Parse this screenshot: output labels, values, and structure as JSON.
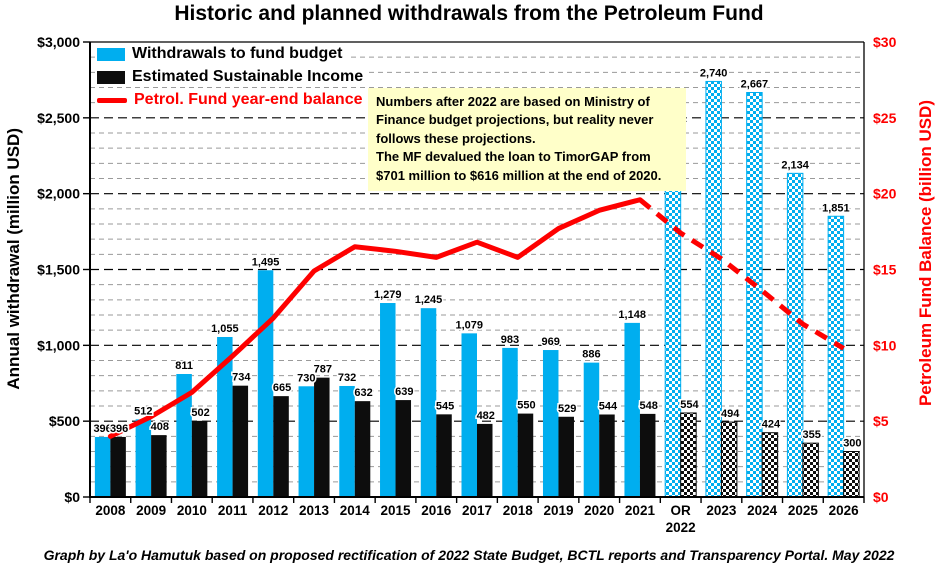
{
  "title": "Historic and planned withdrawals from the Petroleum Fund",
  "footer": "Graph by La'o Hamutuk based on proposed rectification of 2022 State Budget, BCTL reports and Transparency Portal. May 2022",
  "legend": {
    "withdrawals_label": "Withdrawals to fund budget",
    "esi_label": "Estimated Sustainable Income",
    "balance_label": "Petrol. Fund year-end balance"
  },
  "annotation": {
    "para1": "Numbers after 2022 are based on Ministry of Finance budget projections, but reality never follows these projections.",
    "para2": "The MF devalued the loan to TimorGAP from $701 million to $616 million at the end of 2020."
  },
  "axes": {
    "left_label": "Annual withdrawal (million USD)",
    "right_label": "Petroleum Fund Balance (billion USD)",
    "left_ticks": [
      "$0",
      "$500",
      "$1,000",
      "$1,500",
      "$2,000",
      "$2,500",
      "$3,000"
    ],
    "right_ticks": [
      "$0",
      "$5",
      "$10",
      "$15",
      "$20",
      "$25",
      "$30"
    ]
  },
  "colors": {
    "withdrawals_blue": "#00aeef",
    "esi_black": "#0d0d0d",
    "balance_red": "#fe0000",
    "annotation_bg": "#ffffc9"
  },
  "chart_data": {
    "type": "bar",
    "title": "Historic and planned withdrawals from the Petroleum Fund",
    "categories": [
      "2008",
      "2009",
      "2010",
      "2011",
      "2012",
      "2013",
      "2014",
      "2015",
      "2016",
      "2017",
      "2018",
      "2019",
      "2020",
      "2021",
      "OR 2022",
      "2023",
      "2024",
      "2025",
      "2026"
    ],
    "series": [
      {
        "name": "Withdrawals to fund budget",
        "type": "bar",
        "axis": "left",
        "values": [
          396,
          512,
          811,
          1055,
          1495,
          730,
          732,
          1279,
          1245,
          1079,
          983,
          969,
          886,
          1148,
          2441,
          2740,
          2667,
          2134,
          1851
        ]
      },
      {
        "name": "Estimated Sustainable Income",
        "type": "bar",
        "axis": "left",
        "values": [
          396,
          408,
          502,
          734,
          665,
          787,
          632,
          639,
          545,
          482,
          550,
          529,
          544,
          548,
          554,
          494,
          424,
          355,
          300
        ]
      },
      {
        "name": "Petrol. Fund year-end balance",
        "type": "line",
        "axis": "right",
        "values": [
          4.0,
          5.3,
          6.9,
          9.3,
          11.8,
          14.9,
          16.5,
          16.2,
          15.8,
          16.8,
          15.8,
          17.7,
          18.9,
          19.6,
          17.4,
          15.7,
          13.6,
          11.4,
          9.8
        ]
      }
    ],
    "projected_from_index": 14,
    "projected_note": "Bars from OR 2022 onward drawn with checkerboard hatch; balance line dashed from 2021 onward",
    "left_axis": {
      "label": "Annual withdrawal (million USD)",
      "min": 0,
      "max": 3000,
      "major": 500,
      "minor": 100,
      "unit": "million USD"
    },
    "right_axis": {
      "label": "Petroleum Fund Balance (billion USD)",
      "min": 0,
      "max": 30,
      "major": 5,
      "unit": "billion USD"
    },
    "grid": true,
    "legend_position": "top-left"
  }
}
